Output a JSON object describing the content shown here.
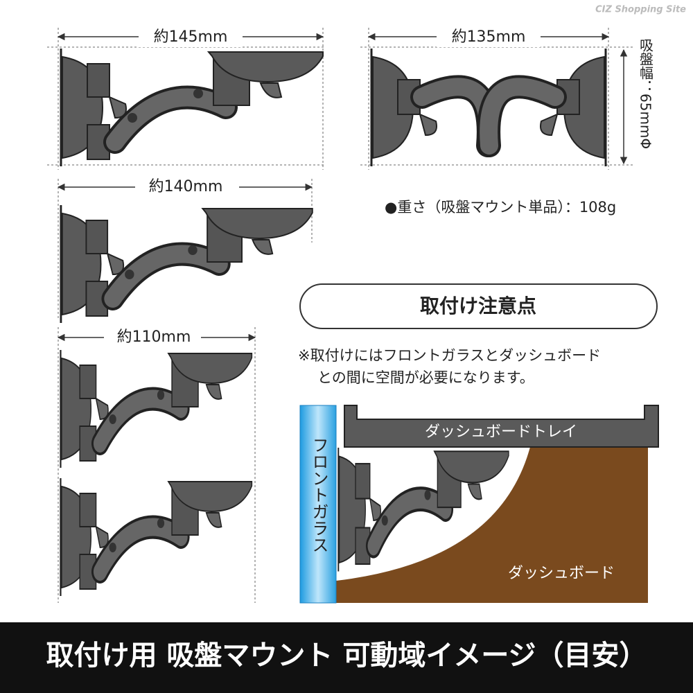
{
  "watermark": "CIZ Shopping Site",
  "dimensions": {
    "top_left": "約145mm",
    "top_right": "約135mm",
    "middle": "約140mm",
    "bottom": "約110mm",
    "cup_width": "吸盤幅：65mmΦ"
  },
  "weight": "●重さ（吸盤マウント単品）：108g",
  "caution": {
    "title": "取付け注意点",
    "lines": [
      "※取付けにはフロントガラスとダッシュボード",
      "との間に空間が必要になります。"
    ]
  },
  "illustration": {
    "tray": "ダッシュボードトレイ",
    "windshield": "フロントガラス",
    "dashboard": "ダッシュボード"
  },
  "footer": {
    "title": "取付け用 吸盤マウント 可動域イメージ（目安）"
  }
}
